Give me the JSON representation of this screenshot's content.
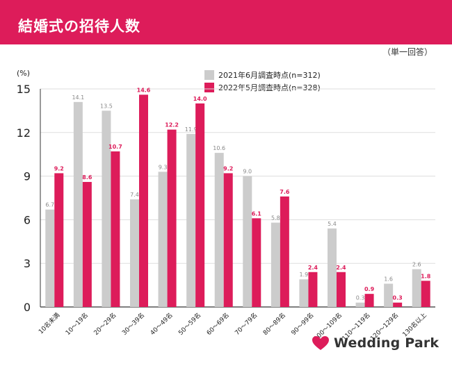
{
  "header": {
    "title": "結婚式の招待人数",
    "answer_type": "（単一回答）"
  },
  "colors": {
    "header_bg": "#dd1c5a",
    "series_2021": "#cccccc",
    "series_2022": "#dd1c5a"
  },
  "chart_data": {
    "type": "bar",
    "unit_label": "(%)",
    "ylim": [
      0,
      15
    ],
    "yticks": [
      0,
      3,
      6,
      9,
      12,
      15
    ],
    "grid": true,
    "legend_position": "top-right",
    "categories": [
      "10名未満",
      "10〜19名",
      "20〜29名",
      "30〜39名",
      "40〜49名",
      "50〜59名",
      "60〜69名",
      "70〜79名",
      "80〜89名",
      "90〜99名",
      "100〜109名",
      "110〜119名",
      "120〜129名",
      "130名以上"
    ],
    "series": [
      {
        "name": "2021年6月調査時点(n=312)",
        "values": [
          6.7,
          14.1,
          13.5,
          7.4,
          9.3,
          11.9,
          10.6,
          9.0,
          5.8,
          1.9,
          5.4,
          0.3,
          1.6,
          2.6
        ]
      },
      {
        "name": "2022年5月調査時点(n=328)",
        "values": [
          9.2,
          8.6,
          10.7,
          14.6,
          12.2,
          14.0,
          9.2,
          6.1,
          7.6,
          2.4,
          2.4,
          0.9,
          0.3,
          1.8
        ]
      }
    ]
  },
  "brand": {
    "logo_text": "Wedding Park",
    "logo_icon": "heart-icon"
  }
}
